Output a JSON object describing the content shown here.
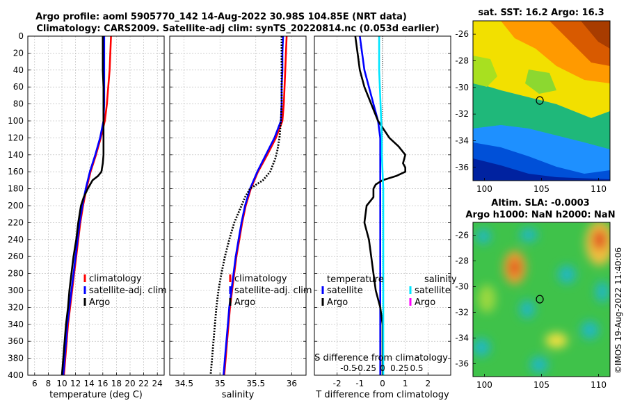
{
  "title": {
    "line1": "Argo profile: aoml 5905770_142 14-Aug-2022 30.98S 104.85E (NRT data)",
    "line2": "Climatology: CARS2009. Satellite-adj clim: synTS_20220814.nc (0.053d earlier)"
  },
  "copyright": "©IMOS 19-Aug-2022 11:40:06",
  "colors": {
    "climatology": "#ff0000",
    "satellite": "#0000ff",
    "argo": "#000000",
    "salinity_satellite": "#00e5ff",
    "salinity_argo": "#ff00ff",
    "grid": "#b4b4b4"
  },
  "chart_data": [
    {
      "type": "line",
      "name": "temperature-profile",
      "xlabel": "temperature (deg C)",
      "xlim": [
        5,
        25
      ],
      "xticks": [
        6,
        8,
        10,
        12,
        14,
        16,
        18,
        20,
        22,
        24
      ],
      "ylim": [
        0,
        400
      ],
      "yticks": [
        0,
        20,
        40,
        60,
        80,
        100,
        120,
        140,
        160,
        180,
        200,
        220,
        240,
        260,
        280,
        300,
        320,
        340,
        360,
        380,
        400
      ],
      "grid": true,
      "legend_position": "lower-right",
      "legend": [
        "climatology",
        "satellite-adj. clim",
        "Argo"
      ],
      "series": [
        {
          "name": "climatology",
          "color": "#ff0000",
          "depth": [
            0,
            20,
            40,
            60,
            80,
            100,
            120,
            140,
            160,
            180,
            200,
            220,
            240,
            260,
            280,
            300,
            320,
            340,
            360,
            380,
            400
          ],
          "values": [
            17.2,
            17.1,
            17.0,
            16.8,
            16.6,
            16.3,
            15.7,
            15.0,
            14.2,
            13.6,
            13.1,
            12.7,
            12.4,
            12.1,
            11.8,
            11.5,
            11.2,
            10.9,
            10.7,
            10.5,
            10.3
          ]
        },
        {
          "name": "satellite-adj. clim",
          "color": "#0000ff",
          "depth": [
            0,
            20,
            40,
            60,
            80,
            100,
            120,
            140,
            160,
            180,
            200,
            220,
            240,
            260,
            280,
            300,
            320,
            340,
            360,
            380,
            400
          ],
          "values": [
            16.2,
            16.2,
            16.2,
            16.2,
            16.2,
            16.1,
            15.6,
            14.9,
            14.1,
            13.5,
            13.0,
            12.6,
            12.3,
            12.0,
            11.7,
            11.4,
            11.1,
            10.8,
            10.6,
            10.4,
            10.2
          ]
        },
        {
          "name": "Argo",
          "color": "#000000",
          "depth": [
            0,
            20,
            40,
            60,
            80,
            100,
            120,
            140,
            150,
            160,
            165,
            170,
            180,
            190,
            200,
            220,
            240,
            260,
            280,
            300,
            320,
            340,
            360,
            380,
            400
          ],
          "values": [
            16.0,
            16.0,
            16.0,
            16.1,
            16.1,
            16.1,
            16.1,
            16.1,
            16.0,
            15.8,
            15.3,
            14.5,
            13.8,
            13.2,
            12.8,
            12.4,
            12.1,
            11.7,
            11.4,
            11.1,
            10.9,
            10.6,
            10.4,
            10.2,
            10.0
          ]
        }
      ]
    },
    {
      "type": "line",
      "name": "salinity-profile",
      "xlabel": "salinity",
      "xlim": [
        34.3,
        36.2
      ],
      "xticks": [
        34.5,
        35,
        35.5,
        36
      ],
      "xtick_labels": [
        "34.5",
        "35",
        "35.5",
        "36"
      ],
      "ylim": [
        0,
        400
      ],
      "grid": true,
      "legend_position": "lower-right",
      "legend": [
        "climatology",
        "satellite-adj. clim",
        "Argo"
      ],
      "series": [
        {
          "name": "climatology",
          "color": "#ff0000",
          "depth": [
            0,
            20,
            40,
            60,
            80,
            100,
            120,
            140,
            160,
            180,
            200,
            220,
            240,
            260,
            280,
            300,
            320,
            340,
            360,
            380,
            400
          ],
          "values": [
            35.93,
            35.92,
            35.91,
            35.9,
            35.89,
            35.87,
            35.78,
            35.66,
            35.53,
            35.43,
            35.36,
            35.31,
            35.27,
            35.23,
            35.2,
            35.17,
            35.14,
            35.12,
            35.1,
            35.08,
            35.06
          ]
        },
        {
          "name": "satellite-adj. clim",
          "color": "#0000ff",
          "depth": [
            0,
            20,
            40,
            60,
            80,
            100,
            120,
            140,
            160,
            180,
            200,
            220,
            240,
            260,
            280,
            300,
            320,
            340,
            360,
            380,
            400
          ],
          "values": [
            35.88,
            35.87,
            35.87,
            35.86,
            35.86,
            35.85,
            35.76,
            35.64,
            35.52,
            35.42,
            35.35,
            35.3,
            35.26,
            35.22,
            35.19,
            35.16,
            35.13,
            35.11,
            35.09,
            35.07,
            35.05
          ]
        },
        {
          "name": "Argo",
          "color": "#000000",
          "depth": [
            0,
            20,
            40,
            60,
            80,
            100,
            120,
            135,
            145,
            160,
            170,
            180,
            190,
            200,
            220,
            240,
            260,
            280,
            300,
            320,
            340,
            360,
            380,
            400
          ],
          "values": [
            35.86,
            35.86,
            35.86,
            35.86,
            35.86,
            35.85,
            35.83,
            35.8,
            35.77,
            35.7,
            35.6,
            35.42,
            35.35,
            35.3,
            35.2,
            35.13,
            35.07,
            35.02,
            34.98,
            34.95,
            34.93,
            34.91,
            34.89,
            34.87
          ]
        }
      ]
    },
    {
      "type": "line",
      "name": "difference-profile",
      "xlabel": "T difference from climatology",
      "xlim": [
        -3,
        3
      ],
      "xticks": [
        -2,
        -1,
        0,
        1,
        2
      ],
      "xtick_labels": [
        "-2",
        "-1",
        "0",
        "1",
        "2"
      ],
      "top_axis_label": "S difference from climatology",
      "top_ticks": [
        -0.5,
        -0.25,
        0,
        0.25,
        0.5
      ],
      "top_tick_labels": [
        "-0.5",
        "-0.25",
        "0",
        "0.25",
        "0.5"
      ],
      "ylim": [
        0,
        400
      ],
      "grid": true,
      "legend_position": "lower",
      "legend_titles": [
        "temperature",
        "salinity"
      ],
      "legend": [
        "satellite",
        "Argo",
        "satellite",
        "Argo"
      ],
      "series": [
        {
          "name": "temperature satellite",
          "color": "#0000ff",
          "depth": [
            0,
            20,
            40,
            60,
            80,
            100,
            110,
            120,
            140,
            160,
            180,
            200,
            240,
            280,
            320,
            360,
            400
          ],
          "values": [
            -1.0,
            -0.9,
            -0.8,
            -0.6,
            -0.4,
            -0.2,
            -0.15,
            -0.1,
            -0.1,
            -0.1,
            -0.1,
            -0.1,
            -0.1,
            -0.1,
            -0.1,
            -0.1,
            -0.1
          ]
        },
        {
          "name": "temperature Argo",
          "color": "#000000",
          "depth": [
            0,
            20,
            40,
            60,
            80,
            100,
            120,
            130,
            140,
            150,
            155,
            160,
            165,
            170,
            175,
            180,
            190,
            200,
            220,
            240,
            260,
            280,
            300,
            320,
            340,
            360,
            380,
            400
          ],
          "values": [
            -1.2,
            -1.1,
            -1.0,
            -0.8,
            -0.5,
            -0.2,
            0.3,
            0.7,
            1.0,
            0.9,
            1.0,
            1.0,
            0.6,
            0.0,
            -0.3,
            -0.4,
            -0.4,
            -0.7,
            -0.8,
            -0.6,
            -0.5,
            -0.4,
            -0.3,
            -0.1,
            0.0,
            0.0,
            0.0,
            0.0
          ]
        },
        {
          "name": "salinity satellite",
          "color": "#00e5ff",
          "depth": [
            0,
            20,
            40,
            60,
            80,
            100,
            120,
            140,
            160,
            180,
            200,
            240,
            280,
            320,
            360,
            400
          ],
          "values": [
            -0.05,
            -0.05,
            -0.05,
            -0.04,
            -0.03,
            -0.02,
            -0.01,
            -0.01,
            0.0,
            0.01,
            0.01,
            0.01,
            0.01,
            0.01,
            0.01,
            0.01
          ]
        }
      ]
    },
    {
      "type": "heatmap",
      "name": "sst-map",
      "title": "sat. SST: 16.2 Argo: 16.3",
      "xlim": [
        99,
        111
      ],
      "xticks": [
        100,
        105,
        110
      ],
      "ylim": [
        -37,
        -25
      ],
      "yticks": [
        -26,
        -28,
        -30,
        -32,
        -34,
        -36
      ],
      "marker": {
        "lon": 104.85,
        "lat": -30.98
      },
      "sat_sst": 16.2,
      "argo_sst": 16.3
    },
    {
      "type": "heatmap",
      "name": "sla-map",
      "title_line1": "Altim. SLA: -0.0003",
      "title_line2": "Argo h1000: NaN h2000: NaN",
      "xlim": [
        99,
        111
      ],
      "xticks": [
        100,
        105,
        110
      ],
      "ylim": [
        -37,
        -25
      ],
      "yticks": [
        -26,
        -28,
        -30,
        -32,
        -34,
        -36
      ],
      "marker": {
        "lon": 104.85,
        "lat": -30.98
      },
      "sla": -0.0003
    }
  ]
}
